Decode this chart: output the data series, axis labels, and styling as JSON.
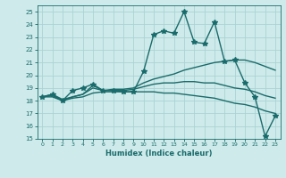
{
  "title": "",
  "xlabel": "Humidex (Indice chaleur)",
  "ylabel": "",
  "xlim": [
    -0.5,
    23.5
  ],
  "ylim": [
    15,
    25.5
  ],
  "yticks": [
    15,
    16,
    17,
    18,
    19,
    20,
    21,
    22,
    23,
    24,
    25
  ],
  "xticks": [
    0,
    1,
    2,
    3,
    4,
    5,
    6,
    7,
    8,
    9,
    10,
    11,
    12,
    13,
    14,
    15,
    16,
    17,
    18,
    19,
    20,
    21,
    22,
    23
  ],
  "background_color": "#ceeaea",
  "grid_color": "#aad4d4",
  "line_color": "#1a6b6b",
  "series": [
    {
      "x": [
        0,
        1,
        2,
        3,
        4,
        5,
        6,
        7,
        8,
        9,
        10,
        11,
        12,
        13,
        14,
        15,
        16,
        17,
        18,
        19,
        20,
        21,
        22,
        23
      ],
      "y": [
        18.3,
        18.5,
        18.0,
        18.8,
        19.0,
        19.3,
        18.8,
        18.8,
        18.7,
        18.7,
        20.3,
        23.2,
        23.5,
        23.3,
        25.0,
        22.6,
        22.5,
        24.2,
        21.1,
        21.2,
        19.4,
        18.3,
        15.2,
        16.8
      ],
      "marker": "*",
      "markersize": 4,
      "linewidth": 1.0
    },
    {
      "x": [
        0,
        1,
        2,
        3,
        4,
        5,
        6,
        7,
        8,
        9,
        10,
        11,
        12,
        13,
        14,
        15,
        16,
        17,
        18,
        19,
        20,
        21,
        22,
        23
      ],
      "y": [
        18.3,
        18.5,
        18.1,
        18.3,
        18.5,
        19.2,
        18.8,
        18.9,
        18.9,
        19.0,
        19.4,
        19.7,
        19.9,
        20.1,
        20.4,
        20.6,
        20.8,
        21.0,
        21.1,
        21.2,
        21.2,
        21.0,
        20.7,
        20.4
      ],
      "marker": null,
      "markersize": 0,
      "linewidth": 1.0
    },
    {
      "x": [
        0,
        1,
        2,
        3,
        4,
        5,
        6,
        7,
        8,
        9,
        10,
        11,
        12,
        13,
        14,
        15,
        16,
        17,
        18,
        19,
        20,
        21,
        22,
        23
      ],
      "y": [
        18.3,
        18.4,
        18.0,
        18.3,
        18.5,
        19.0,
        18.8,
        18.8,
        18.8,
        18.9,
        19.1,
        19.3,
        19.4,
        19.4,
        19.5,
        19.5,
        19.4,
        19.4,
        19.2,
        19.0,
        18.9,
        18.7,
        18.4,
        18.2
      ],
      "marker": null,
      "markersize": 0,
      "linewidth": 1.0
    },
    {
      "x": [
        0,
        1,
        2,
        3,
        4,
        5,
        6,
        7,
        8,
        9,
        10,
        11,
        12,
        13,
        14,
        15,
        16,
        17,
        18,
        19,
        20,
        21,
        22,
        23
      ],
      "y": [
        18.3,
        18.3,
        18.0,
        18.2,
        18.3,
        18.6,
        18.7,
        18.7,
        18.7,
        18.7,
        18.7,
        18.7,
        18.6,
        18.6,
        18.5,
        18.4,
        18.3,
        18.2,
        18.0,
        17.8,
        17.7,
        17.5,
        17.2,
        17.0
      ],
      "marker": null,
      "markersize": 0,
      "linewidth": 1.0
    }
  ]
}
